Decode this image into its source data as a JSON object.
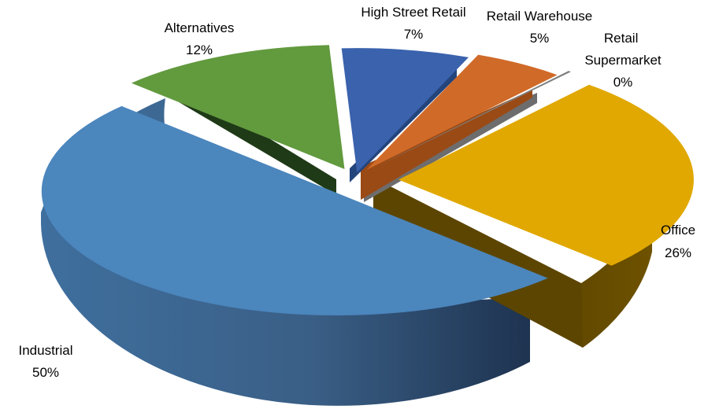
{
  "chart_data": {
    "type": "pie",
    "three_d": true,
    "exploded": true,
    "title": "",
    "legend": "none",
    "slices": [
      {
        "label": "High Street Retail",
        "value": 7,
        "value_label": "7%",
        "color": "#3a62ad"
      },
      {
        "label": "Retail Warehouse",
        "value": 5,
        "value_label": "5%",
        "color": "#d06a28"
      },
      {
        "label": "Retail Supermarket",
        "value": 0,
        "value_label": "0%",
        "color": "#808080"
      },
      {
        "label": "Office",
        "value": 26,
        "value_label": "26%",
        "color": "#e0a800"
      },
      {
        "label": "Industrial",
        "value": 50,
        "value_label": "50%",
        "color": "#4b86bd"
      },
      {
        "label": "Alternatives",
        "value": 12,
        "value_label": "12%",
        "color": "#629a3e"
      }
    ]
  }
}
